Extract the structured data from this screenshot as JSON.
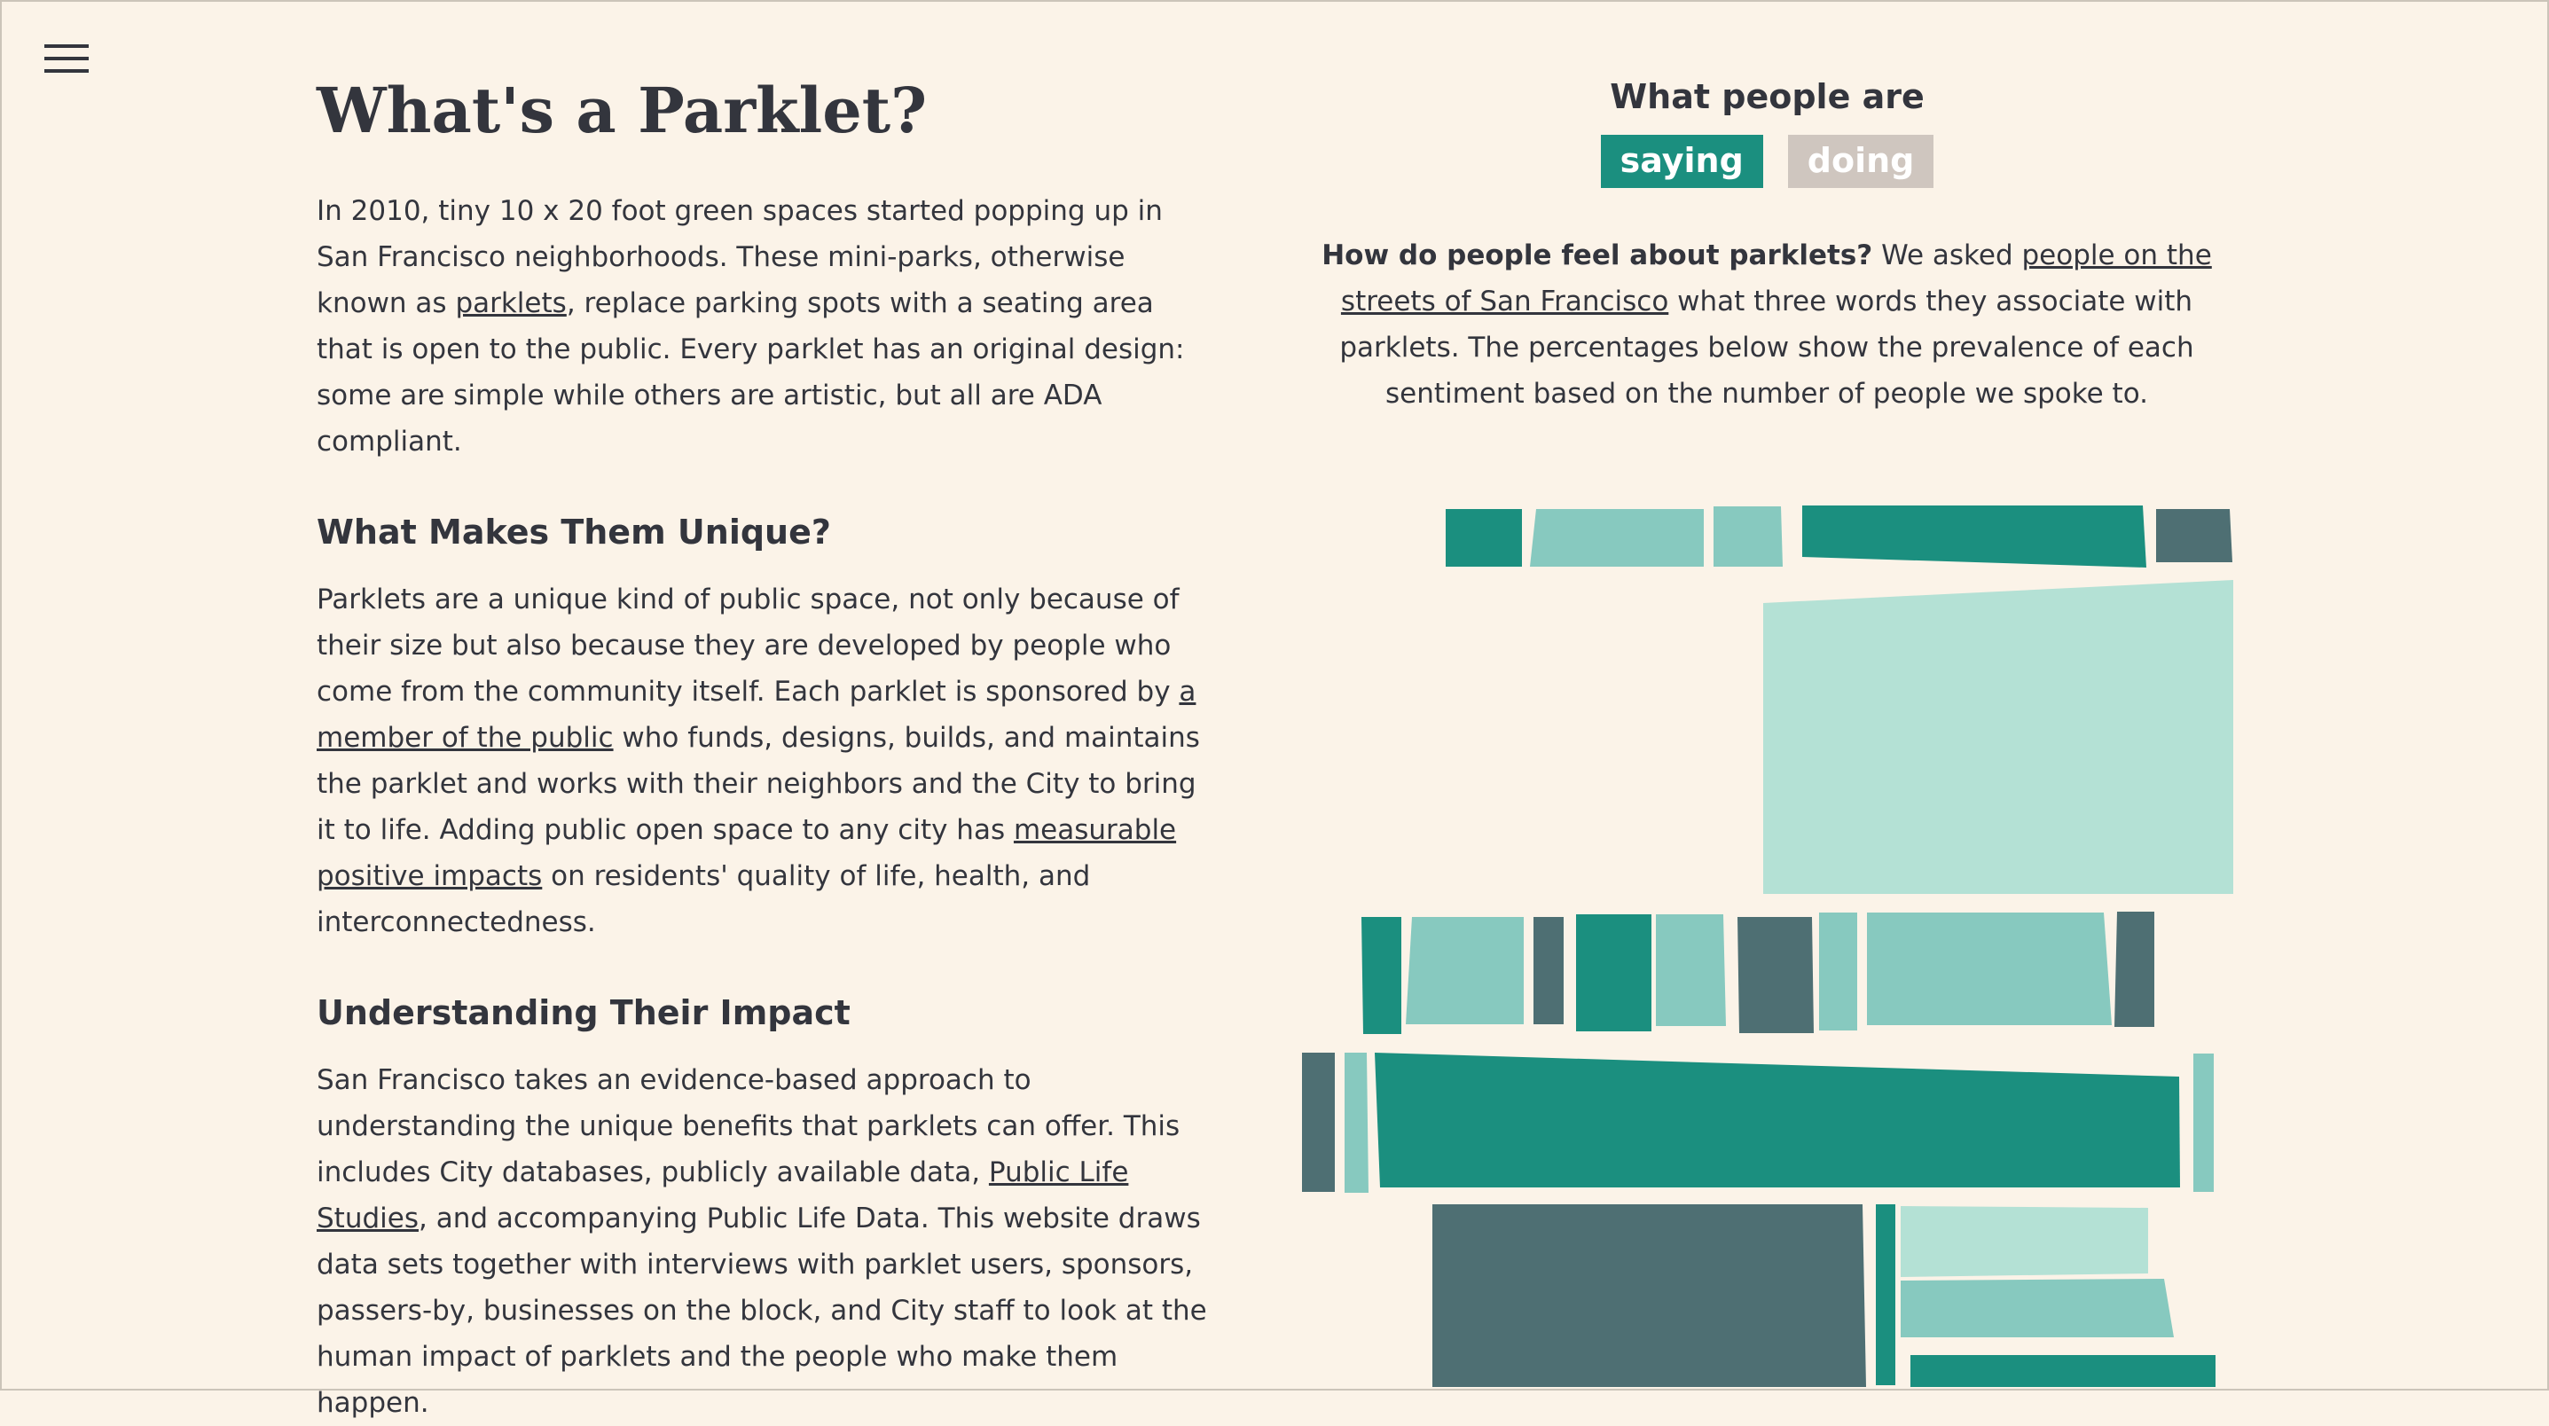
{
  "nav": {
    "menu_icon": "hamburger-menu-icon"
  },
  "article": {
    "title": "What's a Parklet?",
    "intro": {
      "t1": "In 2010, tiny 10 x 20 foot green spaces started popping up in San Francisco neighborhoods. These mini-parks, otherwise known as ",
      "link1": "parklets",
      "t2": ", replace parking spots with a seating area that is open to the public. Every parklet has an original design: some are simple while others are artistic, but all are ADA compliant."
    },
    "sections": [
      {
        "heading": "What Makes Them Unique?",
        "t1": "Parklets are a unique kind of public space, not only because of their size but also because they are developed by people who come from the community itself. Each parklet is sponsored by ",
        "link1": "a member of the public",
        "t2": " who funds, designs, builds, and maintains the parklet and works with their neighbors and the City to bring it to life. Adding public open space to any city has ",
        "link2": "measurable positive impacts",
        "t3": " on residents' quality of life, health, and interconnectedness."
      },
      {
        "heading": "Understanding Their Impact",
        "t1": "San Francisco takes an evidence-based approach to understanding the unique benefits that parklets can offer. This includes City databases, publicly available data, ",
        "link1": "Public Life Studies",
        "t2": ", and accompanying Public Life Data. This website draws data sets together with interviews with parklet users, sponsors, passers-by, businesses on the block, and City staff to look at the human impact of parklets and the people who make them happen."
      }
    ]
  },
  "sentiment_panel": {
    "title": "What people are",
    "toggle_saying": "saying",
    "toggle_doing": "doing",
    "intro_bold": "How do people feel about parklets?",
    "intro_t1": " We asked ",
    "intro_link": "people on the streets of San Francisco",
    "intro_t2": " what three words they associate with parklets. The percentages below show the prevalence of each sentiment based on the number of people we spoke to."
  },
  "colors": {
    "background": "#fbf3e8",
    "text": "#33353d",
    "accent_teal": "#1b8f7f",
    "light_teal": "#87c9bf",
    "pale_teal": "#b4e1d5",
    "slate": "#4e6f73",
    "inactive_toggle": "#cfc6bf"
  }
}
